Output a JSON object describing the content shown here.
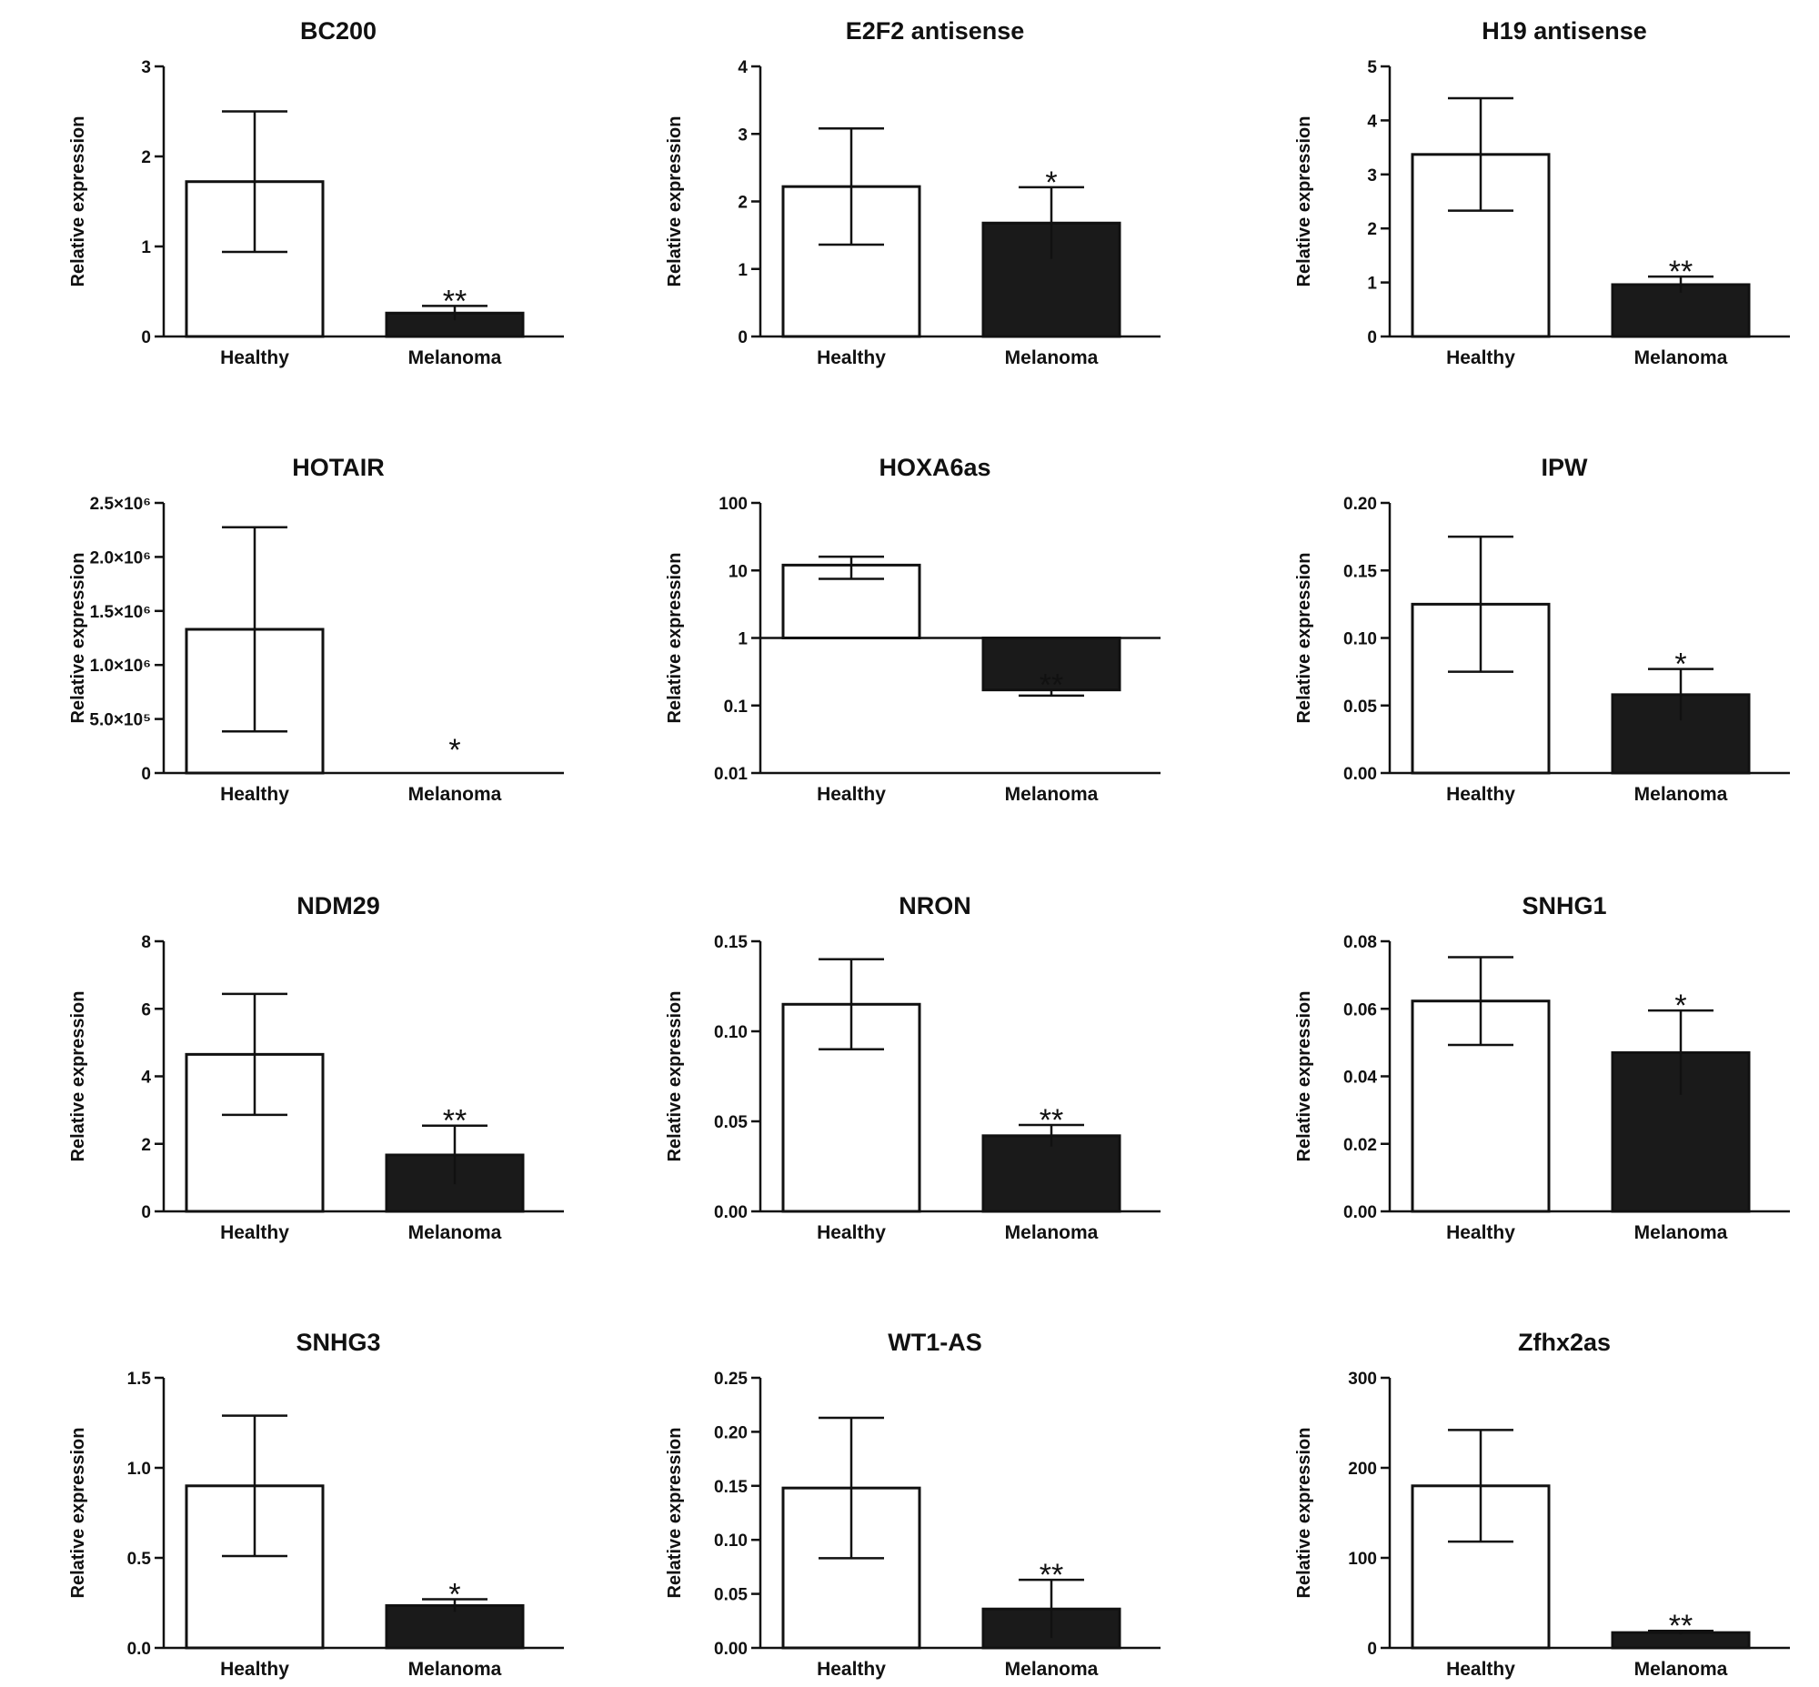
{
  "chart_data": [
    {
      "type": "bar",
      "title": "BC200",
      "ylabel": "Relative expression",
      "categories": [
        "Healthy",
        "Melanoma"
      ],
      "scale": "linear",
      "ylim": [
        0,
        3
      ],
      "yticks": [
        {
          "v": 0,
          "label": "0"
        },
        {
          "v": 1,
          "label": "1"
        },
        {
          "v": 2,
          "label": "2"
        },
        {
          "v": 3,
          "label": "3"
        }
      ],
      "values": [
        1.72,
        0.26
      ],
      "errors": [
        0.78,
        0.08
      ],
      "significance": [
        "",
        "**"
      ]
    },
    {
      "type": "bar",
      "title": "E2F2 antisense",
      "ylabel": "Relative expression",
      "categories": [
        "Healthy",
        "Melanoma"
      ],
      "scale": "linear",
      "ylim": [
        0,
        4
      ],
      "yticks": [
        {
          "v": 0,
          "label": "0"
        },
        {
          "v": 1,
          "label": "1"
        },
        {
          "v": 2,
          "label": "2"
        },
        {
          "v": 3,
          "label": "3"
        },
        {
          "v": 4,
          "label": "4"
        }
      ],
      "values": [
        2.22,
        1.68
      ],
      "errors": [
        0.86,
        0.53
      ],
      "significance": [
        "",
        "*"
      ]
    },
    {
      "type": "bar",
      "title": "H19 antisense",
      "ylabel": "Relative expression",
      "categories": [
        "Healthy",
        "Melanoma"
      ],
      "scale": "linear",
      "ylim": [
        0,
        5
      ],
      "yticks": [
        {
          "v": 0,
          "label": "0"
        },
        {
          "v": 1,
          "label": "1"
        },
        {
          "v": 2,
          "label": "2"
        },
        {
          "v": 3,
          "label": "3"
        },
        {
          "v": 4,
          "label": "4"
        },
        {
          "v": 5,
          "label": "5"
        }
      ],
      "values": [
        3.37,
        0.96
      ],
      "errors": [
        1.04,
        0.15
      ],
      "significance": [
        "",
        "**"
      ]
    },
    {
      "type": "bar",
      "title": "HOTAIR",
      "ylabel": "Relative expression",
      "categories": [
        "Healthy",
        "Melanoma"
      ],
      "scale": "linear",
      "ylim": [
        0,
        2500000
      ],
      "yticks": [
        {
          "v": 0,
          "label": "0"
        },
        {
          "v": 500000,
          "label": "5.0×10⁵"
        },
        {
          "v": 1000000,
          "label": "1.0×10⁶"
        },
        {
          "v": 1500000,
          "label": "1.5×10⁶"
        },
        {
          "v": 2000000,
          "label": "2.0×10⁶"
        },
        {
          "v": 2500000,
          "label": "2.5×10⁶"
        }
      ],
      "values": [
        1330000,
        0
      ],
      "errors": [
        945000,
        0
      ],
      "significance": [
        "",
        "*"
      ]
    },
    {
      "type": "bar",
      "title": "HOXA6as",
      "ylabel": "Relative expression",
      "categories": [
        "Healthy",
        "Melanoma"
      ],
      "scale": "log",
      "ylim": [
        0.01,
        100
      ],
      "baseline": 1,
      "yticks": [
        {
          "v": 0.01,
          "label": "0.01"
        },
        {
          "v": 0.1,
          "label": "0.1"
        },
        {
          "v": 1,
          "label": "1"
        },
        {
          "v": 10,
          "label": "10"
        },
        {
          "v": 100,
          "label": "100"
        }
      ],
      "values": [
        12,
        0.17
      ],
      "err_low": [
        7.5,
        0.14
      ],
      "err_high": [
        16,
        0.17
      ],
      "significance": [
        "",
        "**"
      ]
    },
    {
      "type": "bar",
      "title": "IPW",
      "ylabel": "Relative expression",
      "categories": [
        "Healthy",
        "Melanoma"
      ],
      "scale": "linear",
      "ylim": [
        0,
        0.2
      ],
      "yticks": [
        {
          "v": 0,
          "label": "0.00"
        },
        {
          "v": 0.05,
          "label": "0.05"
        },
        {
          "v": 0.1,
          "label": "0.10"
        },
        {
          "v": 0.15,
          "label": "0.15"
        },
        {
          "v": 0.2,
          "label": "0.20"
        }
      ],
      "values": [
        0.125,
        0.058
      ],
      "errors": [
        0.05,
        0.019
      ],
      "significance": [
        "",
        "*"
      ]
    },
    {
      "type": "bar",
      "title": "NDM29",
      "ylabel": "Relative expression",
      "categories": [
        "Healthy",
        "Melanoma"
      ],
      "scale": "linear",
      "ylim": [
        0,
        8
      ],
      "yticks": [
        {
          "v": 0,
          "label": "0"
        },
        {
          "v": 2,
          "label": "2"
        },
        {
          "v": 4,
          "label": "4"
        },
        {
          "v": 6,
          "label": "6"
        },
        {
          "v": 8,
          "label": "8"
        }
      ],
      "values": [
        4.65,
        1.67
      ],
      "errors": [
        1.79,
        0.87
      ],
      "significance": [
        "",
        "**"
      ]
    },
    {
      "type": "bar",
      "title": "NRON",
      "ylabel": "Relative expression",
      "categories": [
        "Healthy",
        "Melanoma"
      ],
      "scale": "linear",
      "ylim": [
        0,
        0.15
      ],
      "yticks": [
        {
          "v": 0,
          "label": "0.00"
        },
        {
          "v": 0.05,
          "label": "0.05"
        },
        {
          "v": 0.1,
          "label": "0.10"
        },
        {
          "v": 0.15,
          "label": "0.15"
        }
      ],
      "values": [
        0.115,
        0.042
      ],
      "errors": [
        0.025,
        0.006
      ],
      "significance": [
        "",
        "**"
      ]
    },
    {
      "type": "bar",
      "title": "SNHG1",
      "ylabel": "Relative expression",
      "categories": [
        "Healthy",
        "Melanoma"
      ],
      "scale": "linear",
      "ylim": [
        0,
        0.08
      ],
      "yticks": [
        {
          "v": 0,
          "label": "0.00"
        },
        {
          "v": 0.02,
          "label": "0.02"
        },
        {
          "v": 0.04,
          "label": "0.04"
        },
        {
          "v": 0.06,
          "label": "0.06"
        },
        {
          "v": 0.08,
          "label": "0.08"
        }
      ],
      "values": [
        0.0623,
        0.047
      ],
      "errors": [
        0.013,
        0.0125
      ],
      "significance": [
        "",
        "*"
      ]
    },
    {
      "type": "bar",
      "title": "SNHG3",
      "ylabel": "Relative expression",
      "categories": [
        "Healthy",
        "Melanoma"
      ],
      "scale": "linear",
      "ylim": [
        0,
        1.5
      ],
      "yticks": [
        {
          "v": 0,
          "label": "0.0"
        },
        {
          "v": 0.5,
          "label": "0.5"
        },
        {
          "v": 1,
          "label": "1.0"
        },
        {
          "v": 1.5,
          "label": "1.5"
        }
      ],
      "values": [
        0.9,
        0.235
      ],
      "errors": [
        0.39,
        0.035
      ],
      "significance": [
        "",
        "*"
      ]
    },
    {
      "type": "bar",
      "title": "WT1-AS",
      "ylabel": "Relative expression",
      "categories": [
        "Healthy",
        "Melanoma"
      ],
      "scale": "linear",
      "ylim": [
        0,
        0.25
      ],
      "yticks": [
        {
          "v": 0,
          "label": "0.00"
        },
        {
          "v": 0.05,
          "label": "0.05"
        },
        {
          "v": 0.1,
          "label": "0.10"
        },
        {
          "v": 0.15,
          "label": "0.15"
        },
        {
          "v": 0.2,
          "label": "0.20"
        },
        {
          "v": 0.25,
          "label": "0.25"
        }
      ],
      "values": [
        0.148,
        0.036
      ],
      "errors": [
        0.065,
        0.027
      ],
      "significance": [
        "",
        "**"
      ]
    },
    {
      "type": "bar",
      "title": "Zfhx2as",
      "ylabel": "Relative expression",
      "categories": [
        "Healthy",
        "Melanoma"
      ],
      "scale": "linear",
      "ylim": [
        0,
        300
      ],
      "yticks": [
        {
          "v": 0,
          "label": "0"
        },
        {
          "v": 100,
          "label": "100"
        },
        {
          "v": 200,
          "label": "200"
        },
        {
          "v": 300,
          "label": "300"
        }
      ],
      "values": [
        180,
        17
      ],
      "errors": [
        62,
        2
      ],
      "significance": [
        "",
        "**"
      ]
    }
  ]
}
